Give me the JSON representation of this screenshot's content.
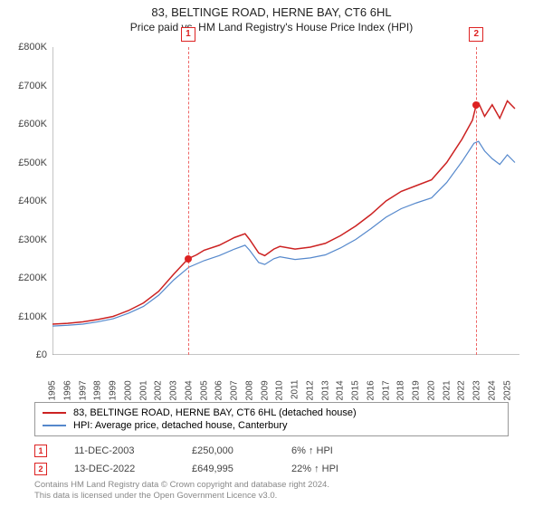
{
  "title": "83, BELTINGE ROAD, HERNE BAY, CT6 6HL",
  "subtitle": "Price paid vs. HM Land Registry's House Price Index (HPI)",
  "chart": {
    "type": "line",
    "x_start": 1995,
    "x_end": 2025.8,
    "y_min": 0,
    "y_max": 800000,
    "y_ticks": [
      0,
      100000,
      200000,
      300000,
      400000,
      500000,
      600000,
      700000,
      800000
    ],
    "y_tick_labels": [
      "£0",
      "£100K",
      "£200K",
      "£300K",
      "£400K",
      "£500K",
      "£600K",
      "£700K",
      "£800K"
    ],
    "x_ticks": [
      1995,
      1996,
      1997,
      1998,
      1999,
      2000,
      2001,
      2002,
      2003,
      2004,
      2005,
      2006,
      2007,
      2008,
      2009,
      2010,
      2011,
      2012,
      2013,
      2014,
      2015,
      2016,
      2017,
      2018,
      2019,
      2020,
      2021,
      2022,
      2023,
      2024,
      2025
    ],
    "background_color": "#ffffff",
    "axis_color": "#888888",
    "series": [
      {
        "name": "property",
        "color": "#cc2222",
        "width": 1.5,
        "data": [
          [
            1995,
            80000
          ],
          [
            1996,
            82000
          ],
          [
            1997,
            86000
          ],
          [
            1998,
            92000
          ],
          [
            1999,
            100000
          ],
          [
            2000,
            115000
          ],
          [
            2001,
            135000
          ],
          [
            2002,
            165000
          ],
          [
            2003,
            210000
          ],
          [
            2003.95,
            250000
          ],
          [
            2004.5,
            260000
          ],
          [
            2005,
            272000
          ],
          [
            2006,
            285000
          ],
          [
            2007,
            305000
          ],
          [
            2007.7,
            315000
          ],
          [
            2008,
            300000
          ],
          [
            2008.6,
            265000
          ],
          [
            2009,
            258000
          ],
          [
            2009.6,
            275000
          ],
          [
            2010,
            282000
          ],
          [
            2011,
            275000
          ],
          [
            2012,
            280000
          ],
          [
            2013,
            290000
          ],
          [
            2014,
            310000
          ],
          [
            2015,
            335000
          ],
          [
            2016,
            365000
          ],
          [
            2017,
            400000
          ],
          [
            2018,
            425000
          ],
          [
            2019,
            440000
          ],
          [
            2020,
            455000
          ],
          [
            2021,
            500000
          ],
          [
            2022,
            560000
          ],
          [
            2022.7,
            610000
          ],
          [
            2022.95,
            649995
          ],
          [
            2023.1,
            655000
          ],
          [
            2023.5,
            620000
          ],
          [
            2024,
            650000
          ],
          [
            2024.5,
            615000
          ],
          [
            2025,
            660000
          ],
          [
            2025.5,
            640000
          ]
        ]
      },
      {
        "name": "hpi",
        "color": "#5588cc",
        "width": 1.2,
        "data": [
          [
            1995,
            75000
          ],
          [
            1996,
            77000
          ],
          [
            1997,
            80000
          ],
          [
            1998,
            86000
          ],
          [
            1999,
            94000
          ],
          [
            2000,
            108000
          ],
          [
            2001,
            126000
          ],
          [
            2002,
            155000
          ],
          [
            2003,
            195000
          ],
          [
            2004,
            228000
          ],
          [
            2005,
            245000
          ],
          [
            2006,
            258000
          ],
          [
            2007,
            275000
          ],
          [
            2007.7,
            285000
          ],
          [
            2008,
            272000
          ],
          [
            2008.6,
            240000
          ],
          [
            2009,
            235000
          ],
          [
            2009.6,
            250000
          ],
          [
            2010,
            255000
          ],
          [
            2011,
            248000
          ],
          [
            2012,
            252000
          ],
          [
            2013,
            260000
          ],
          [
            2014,
            278000
          ],
          [
            2015,
            300000
          ],
          [
            2016,
            328000
          ],
          [
            2017,
            358000
          ],
          [
            2018,
            380000
          ],
          [
            2019,
            395000
          ],
          [
            2020,
            408000
          ],
          [
            2021,
            448000
          ],
          [
            2022,
            502000
          ],
          [
            2022.8,
            550000
          ],
          [
            2023.1,
            555000
          ],
          [
            2023.5,
            530000
          ],
          [
            2024,
            510000
          ],
          [
            2024.5,
            495000
          ],
          [
            2025,
            520000
          ],
          [
            2025.5,
            500000
          ]
        ]
      }
    ],
    "markers": [
      {
        "n": "1",
        "x": 2003.95,
        "y": 250000
      },
      {
        "n": "2",
        "x": 2022.95,
        "y": 649995
      }
    ]
  },
  "legend": {
    "items": [
      {
        "color": "#cc2222",
        "label": "83, BELTINGE ROAD, HERNE BAY, CT6 6HL (detached house)"
      },
      {
        "color": "#5588cc",
        "label": "HPI: Average price, detached house, Canterbury"
      }
    ]
  },
  "sales": [
    {
      "n": "1",
      "date": "11-DEC-2003",
      "price": "£250,000",
      "pct": "6% ↑ HPI"
    },
    {
      "n": "2",
      "date": "13-DEC-2022",
      "price": "£649,995",
      "pct": "22% ↑ HPI"
    }
  ],
  "footer_line1": "Contains HM Land Registry data © Crown copyright and database right 2024.",
  "footer_line2": "This data is licensed under the Open Government Licence v3.0."
}
